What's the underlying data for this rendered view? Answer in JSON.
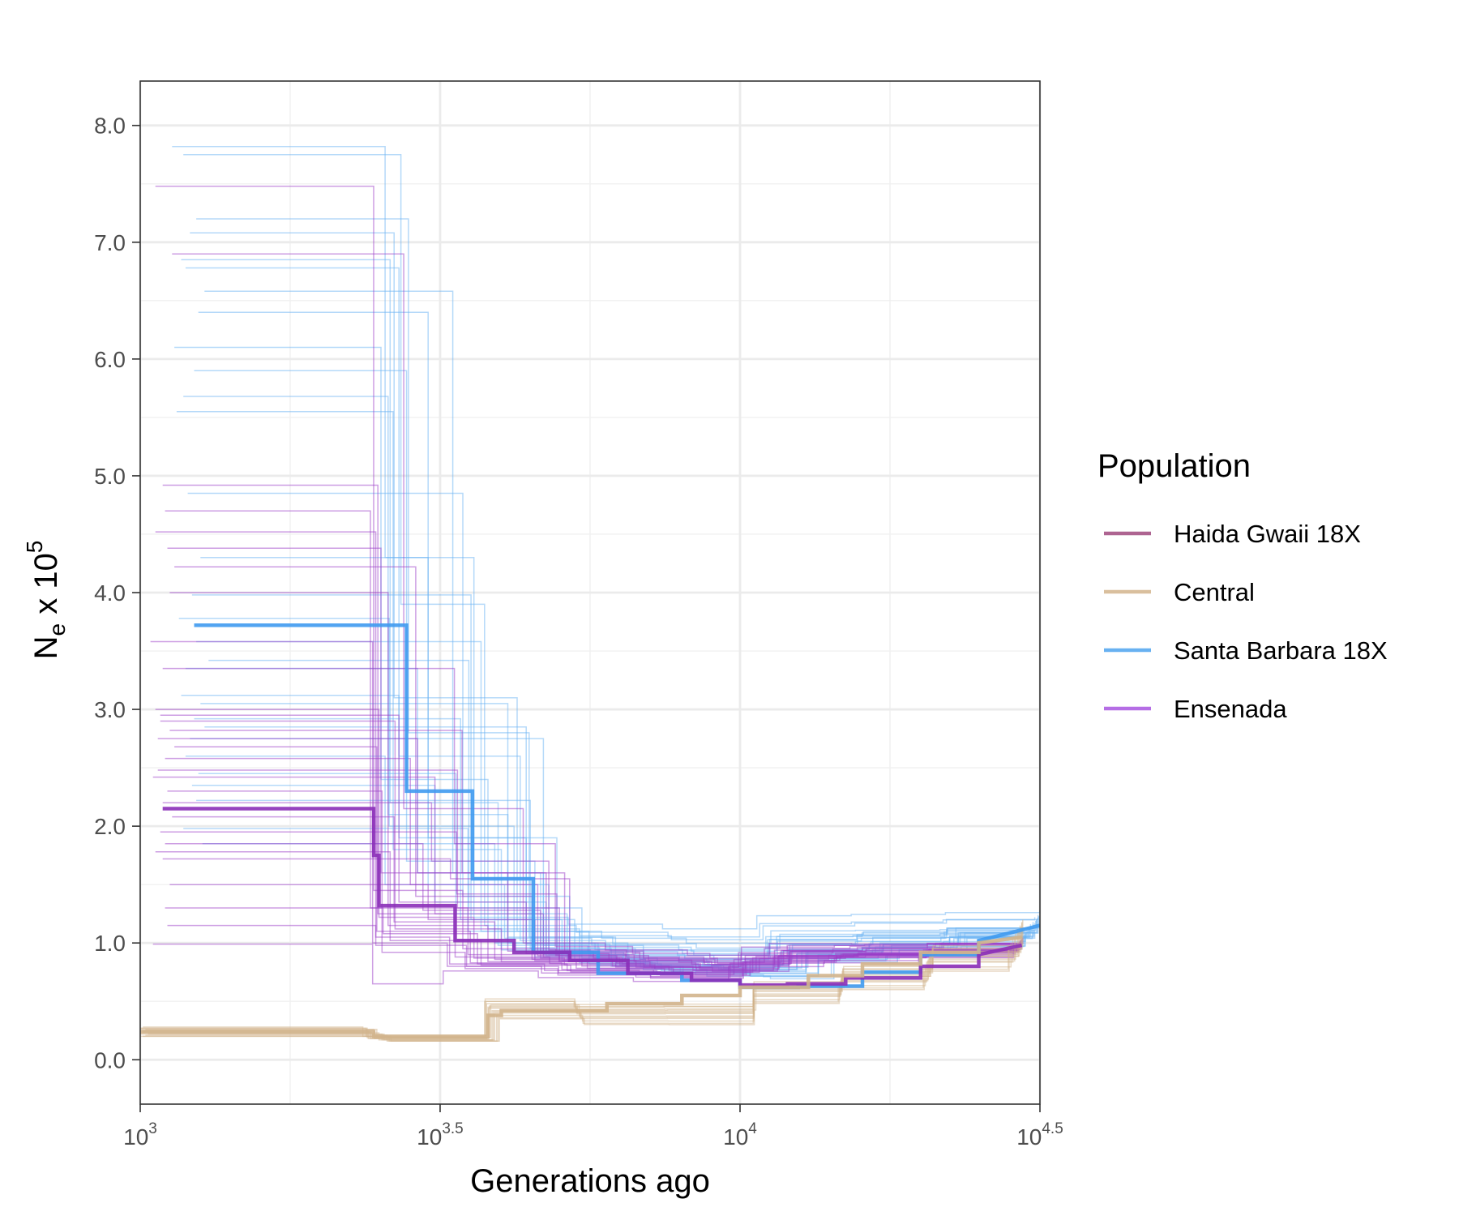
{
  "chart_data": {
    "type": "line",
    "xlabel": "Generations ago",
    "ylabel_main": "N",
    "ylabel_sub": "e",
    "ylabel_rest": " x 10",
    "ylabel_sup": "5",
    "x_scale": "log10",
    "xlim": [
      1000,
      31623
    ],
    "ylim": [
      -0.38,
      8.38
    ],
    "x_ticks": [
      {
        "value": 1000,
        "base": "10",
        "exp": "3"
      },
      {
        "value": 3162,
        "base": "10",
        "exp": "3.5"
      },
      {
        "value": 10000,
        "base": "10",
        "exp": "4"
      },
      {
        "value": 31623,
        "base": "10",
        "exp": "4.5"
      }
    ],
    "y_ticks": [
      {
        "value": 0,
        "label": "0.0"
      },
      {
        "value": 1,
        "label": "1.0"
      },
      {
        "value": 2,
        "label": "2.0"
      },
      {
        "value": 3,
        "label": "3.0"
      },
      {
        "value": 4,
        "label": "4.0"
      },
      {
        "value": 5,
        "label": "5.0"
      },
      {
        "value": 6,
        "label": "6.0"
      },
      {
        "value": 7,
        "label": "7.0"
      },
      {
        "value": 8,
        "label": "8.0"
      }
    ],
    "grid": true,
    "legend": {
      "title": "Population",
      "placement": "right",
      "entries": [
        {
          "name": "Haida Gwaii 18X",
          "color": "#a0497e"
        },
        {
          "name": "Central",
          "color": "#d2b48c"
        },
        {
          "name": "Santa Barbara 18X",
          "color": "#4da3ee"
        },
        {
          "name": "Ensenada",
          "color": "#a855e0"
        }
      ]
    },
    "series": [
      {
        "population": "Santa Barbara 18X",
        "color": "#3f9af0",
        "x": [
          1230,
          2500,
          2500,
          2780,
          2780,
          3380,
          3380,
          3580,
          3580,
          4520,
          4520,
          5800,
          5800,
          8000,
          8000,
          10000,
          10000,
          12500,
          12500,
          16000,
          16000,
          20000,
          20000,
          25000,
          25000,
          31600
        ],
        "y": [
          3.72,
          3.72,
          3.72,
          3.72,
          2.3,
          2.3,
          2.3,
          2.3,
          1.55,
          1.55,
          0.92,
          0.92,
          0.74,
          0.74,
          0.68,
          0.68,
          0.62,
          0.62,
          0.63,
          0.63,
          0.75,
          0.75,
          0.9,
          0.9,
          1.02,
          1.15
        ]
      },
      {
        "population": "Haida Gwaii 18X",
        "color": "#8b2fb8",
        "x": [
          1090,
          2450,
          2450,
          2500,
          2500,
          3350,
          3350,
          3450,
          3450,
          4200,
          4200,
          5200,
          5200,
          6500,
          6500,
          8300,
          8300,
          10000,
          10000,
          12000,
          12000,
          15000,
          15000,
          20000,
          20000,
          25000,
          25000,
          29500
        ],
        "y": [
          2.15,
          2.15,
          1.75,
          1.75,
          1.32,
          1.32,
          1.02,
          1.02,
          1.02,
          1.02,
          0.92,
          0.92,
          0.85,
          0.85,
          0.74,
          0.74,
          0.68,
          0.68,
          0.64,
          0.64,
          0.65,
          0.65,
          0.7,
          0.7,
          0.8,
          0.8,
          0.9,
          0.98
        ]
      },
      {
        "population": "Central",
        "color": "#d2b48c",
        "x": [
          1000,
          2450,
          2450,
          3800,
          3800,
          4000,
          4000,
          6000,
          6000,
          8000,
          8000,
          10000,
          10000,
          13000,
          13000,
          16000,
          16000,
          20000,
          20000,
          25000,
          25000,
          29500
        ],
        "y": [
          0.24,
          0.24,
          0.2,
          0.2,
          0.38,
          0.38,
          0.42,
          0.42,
          0.48,
          0.48,
          0.55,
          0.55,
          0.62,
          0.62,
          0.72,
          0.72,
          0.82,
          0.82,
          0.92,
          0.92,
          1.0,
          1.05
        ]
      }
    ],
    "bootstrap_groups": [
      {
        "population": "Santa Barbara 18X",
        "color": "#6cb4f4",
        "count": 30,
        "y_start": [
          7.82,
          7.75,
          7.2,
          7.08,
          6.85,
          6.78,
          6.58,
          6.4,
          6.1,
          5.9,
          5.68,
          5.55,
          4.85,
          4.3,
          3.98,
          3.78,
          3.58,
          3.42,
          3.35,
          3.12,
          3.05,
          2.92,
          2.85,
          2.75,
          2.6,
          2.45,
          2.35,
          2.22,
          1.98,
          1.85
        ],
        "x_start": [
          1130,
          1180,
          1240,
          1210,
          1170,
          1190,
          1280,
          1250,
          1140,
          1230,
          1180,
          1150,
          1200,
          1260,
          1220,
          1160,
          1240,
          1300,
          1190,
          1170,
          1260,
          1230,
          1280,
          1210,
          1190,
          1250,
          1220,
          1240,
          1180,
          1270
        ],
        "drop1_x": [
          2560,
          2720,
          2800,
          2650,
          2610,
          2700,
          3320,
          3020,
          2520,
          2780,
          2590,
          2640,
          3450,
          3020,
          3560,
          2600,
          3700,
          3530,
          2900,
          2700,
          4100,
          3420,
          4400,
          4700,
          2560,
          3360,
          3100,
          4470,
          3520,
          3900
        ],
        "mid1_y": [
          4.3,
          3.9,
          2.8,
          3.1,
          2.2,
          2.6,
          1.6,
          1.9,
          2.4,
          1.7,
          2.1,
          1.8,
          1.4,
          1.5,
          1.2,
          2.0,
          1.1,
          1.3,
          1.6,
          1.9,
          1.05,
          1.2,
          1.0,
          0.98,
          1.5,
          1.25,
          1.35,
          0.95,
          1.1,
          1.0
        ],
        "drop2_x": [
          3600,
          3750,
          4450,
          4250,
          3950,
          4300,
          4700,
          4950,
          3800,
          4550,
          4100,
          4000,
          5200,
          4800,
          5300,
          4200,
          5600,
          5450,
          4650,
          4400,
          6200,
          5050,
          6500,
          6900,
          4050,
          5150,
          4750,
          6100,
          5400,
          5800
        ],
        "mid2_y": [
          1.22,
          1.15,
          1.05,
          1.1,
          0.98,
          1.02,
          0.9,
          0.95,
          1.12,
          0.88,
          1.0,
          0.94,
          0.86,
          0.9,
          0.84,
          0.96,
          0.82,
          0.87,
          0.92,
          0.99,
          0.8,
          0.85,
          0.78,
          0.77,
          1.04,
          0.86,
          0.89,
          0.8,
          0.83,
          0.81
        ],
        "end_x": [
          31600,
          31000,
          30500,
          29800,
          31200,
          30800,
          29500,
          30200,
          31400,
          29900,
          30600,
          31100,
          29700,
          30400,
          31300,
          30000,
          29600,
          30900,
          31500,
          30300,
          29400,
          30700,
          31000,
          29800,
          30100,
          31200,
          30500,
          29900,
          30800,
          31400
        ],
        "end_y": [
          1.28,
          1.22,
          1.16,
          1.12,
          1.2,
          1.18,
          1.05,
          1.1,
          1.24,
          1.08,
          1.14,
          1.19,
          1.06,
          1.12,
          1.21,
          1.09,
          1.04,
          1.15,
          1.23,
          1.11,
          1.02,
          1.13,
          1.17,
          1.07,
          1.1,
          1.2,
          1.14,
          1.06,
          1.16,
          1.22
        ]
      },
      {
        "population": "Ensenada",
        "color": "#9c3dc8",
        "count": 30,
        "y_start": [
          7.48,
          6.9,
          4.92,
          4.7,
          4.52,
          4.38,
          4.22,
          4.0,
          3.58,
          3.35,
          3.0,
          2.95,
          2.82,
          2.68,
          2.58,
          2.48,
          2.42,
          2.3,
          2.2,
          2.08,
          1.95,
          1.85,
          1.78,
          1.72,
          1.5,
          1.3,
          1.15,
          0.99,
          2.75,
          2.9
        ],
        "x_start": [
          1060,
          1130,
          1090,
          1100,
          1060,
          1110,
          1140,
          1120,
          1040,
          1090,
          1060,
          1080,
          1120,
          1140,
          1100,
          1070,
          1050,
          1110,
          1090,
          1130,
          1080,
          1100,
          1060,
          1090,
          1120,
          1100,
          1110,
          1050,
          1070,
          1080
        ],
        "drop1_x": [
          2450,
          2750,
          2490,
          2420,
          2470,
          2520,
          2880,
          2590,
          2440,
          3340,
          2500,
          2700,
          3440,
          2480,
          2820,
          3380,
          3100,
          2530,
          3060,
          2650,
          3370,
          2960,
          2610,
          3290,
          3020,
          2540,
          2470,
          2440,
          2900,
          2660
        ],
        "mid1_y": [
          1.45,
          2.15,
          1.25,
          1.3,
          1.05,
          1.6,
          1.4,
          1.15,
          1.0,
          1.85,
          1.22,
          1.35,
          1.6,
          1.1,
          1.5,
          1.3,
          1.25,
          0.92,
          1.7,
          1.18,
          1.42,
          1.28,
          1.02,
          1.55,
          1.2,
          1.08,
          0.98,
          0.65,
          1.6,
          1.12
        ],
        "drop2_x": [
          3450,
          4350,
          3350,
          3520,
          3280,
          4100,
          4500,
          3800,
          3250,
          4920,
          3600,
          4400,
          5100,
          3550,
          4600,
          5000,
          4700,
          3480,
          4800,
          3900,
          4950,
          4650,
          3700,
          5200,
          4550,
          3650,
          3500,
          3200,
          4750,
          4000
        ],
        "mid2_y": [
          0.95,
          1.0,
          0.88,
          0.9,
          0.82,
          0.93,
          0.86,
          0.84,
          0.8,
          0.97,
          0.87,
          0.91,
          0.92,
          0.83,
          0.89,
          0.85,
          0.88,
          0.78,
          0.94,
          0.86,
          0.9,
          0.87,
          0.81,
          0.93,
          0.85,
          0.82,
          0.8,
          0.76,
          0.91,
          0.84
        ],
        "end_x": [
          29300,
          28800,
          29500,
          28600,
          29100,
          29400,
          28700,
          29000,
          28500,
          29200,
          28900,
          29600,
          28800,
          29300,
          28400,
          29100,
          28700,
          29500,
          28600,
          29000,
          29400,
          28900,
          29200,
          28500,
          29300,
          28800,
          29100,
          28600,
          29400,
          29000
        ],
        "end_y": [
          1.02,
          0.98,
          1.05,
          0.93,
          1.0,
          1.03,
          0.95,
          0.99,
          0.92,
          1.01,
          0.97,
          1.04,
          0.96,
          1.0,
          0.9,
          0.98,
          0.94,
          1.03,
          0.92,
          0.97,
          1.02,
          0.96,
          0.99,
          0.91,
          1.01,
          0.95,
          0.98,
          0.93,
          1.02,
          0.97
        ]
      },
      {
        "population": "Central",
        "color": "#d2b48c",
        "count": 14,
        "y_start": [
          0.28,
          0.22,
          0.26,
          0.2,
          0.25,
          0.23,
          0.27,
          0.21,
          0.24,
          0.26,
          0.22,
          0.25,
          0.2,
          0.27
        ],
        "x_start": [
          1010,
          1000,
          1020,
          1000,
          1010,
          1030,
          1000,
          1020,
          1010,
          1000,
          1030,
          1020,
          1010,
          1000
        ],
        "drop1_x": [
          2350,
          2550,
          2450,
          2600,
          2400,
          2500,
          2380,
          2580,
          2420,
          2480,
          2530,
          2460,
          2620,
          2390
        ],
        "mid1_y": [
          0.2,
          0.17,
          0.19,
          0.16,
          0.18,
          0.17,
          0.2,
          0.16,
          0.18,
          0.19,
          0.17,
          0.18,
          0.16,
          0.19
        ],
        "drop2_x": [
          3750,
          3900,
          3820,
          3950,
          3780,
          3860,
          3760,
          3930,
          3800,
          3840,
          3880,
          3810,
          3970,
          3770
        ],
        "mid2_y": [
          0.5,
          0.4,
          0.46,
          0.36,
          0.48,
          0.42,
          0.52,
          0.38,
          0.45,
          0.47,
          0.41,
          0.44,
          0.35,
          0.5
        ],
        "end_x": [
          29500,
          28500,
          29000,
          28000,
          29300,
          28800,
          29600,
          28300,
          29100,
          29400,
          28700,
          29200,
          28100,
          29500
        ],
        "end_y": [
          1.18,
          1.05,
          1.12,
          0.98,
          1.15,
          1.08,
          1.2,
          1.0,
          1.1,
          1.14,
          1.06,
          1.11,
          0.96,
          1.17
        ]
      }
    ]
  }
}
